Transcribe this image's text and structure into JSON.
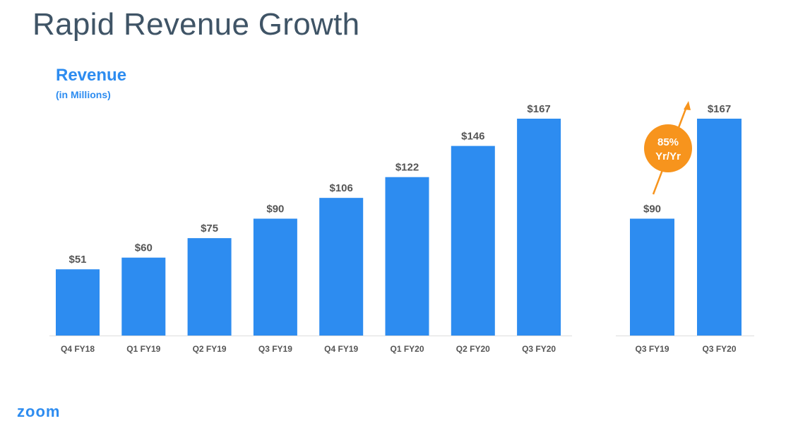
{
  "slide": {
    "title": "Rapid Revenue Growth",
    "logo": "zoom"
  },
  "colors": {
    "bar": "#2d8cf0",
    "title": "#3f5466",
    "label": "#555555",
    "accent": "#f7941d",
    "baseline": "#dddddd"
  },
  "chart_data": [
    {
      "type": "bar",
      "title": "Revenue",
      "subtitle": "(in Millions)",
      "categories": [
        "Q4 FY18",
        "Q1 FY19",
        "Q2 FY19",
        "Q3 FY19",
        "Q4 FY19",
        "Q1 FY20",
        "Q2 FY20",
        "Q3 FY20"
      ],
      "values": [
        51,
        60,
        75,
        90,
        106,
        122,
        146,
        167
      ],
      "labels": [
        "$51",
        "$60",
        "$75",
        "$90",
        "$106",
        "$122",
        "$146",
        "$167"
      ],
      "ylim": [
        0,
        170
      ],
      "grid": false
    },
    {
      "type": "bar",
      "categories": [
        "Q3 FY19",
        "Q3 FY20"
      ],
      "values": [
        90,
        167
      ],
      "labels": [
        "$90",
        "$167"
      ],
      "ylim": [
        0,
        170
      ],
      "grid": false,
      "annotation": {
        "text_line1": "85%",
        "text_line2": "Yr/Yr"
      }
    }
  ]
}
